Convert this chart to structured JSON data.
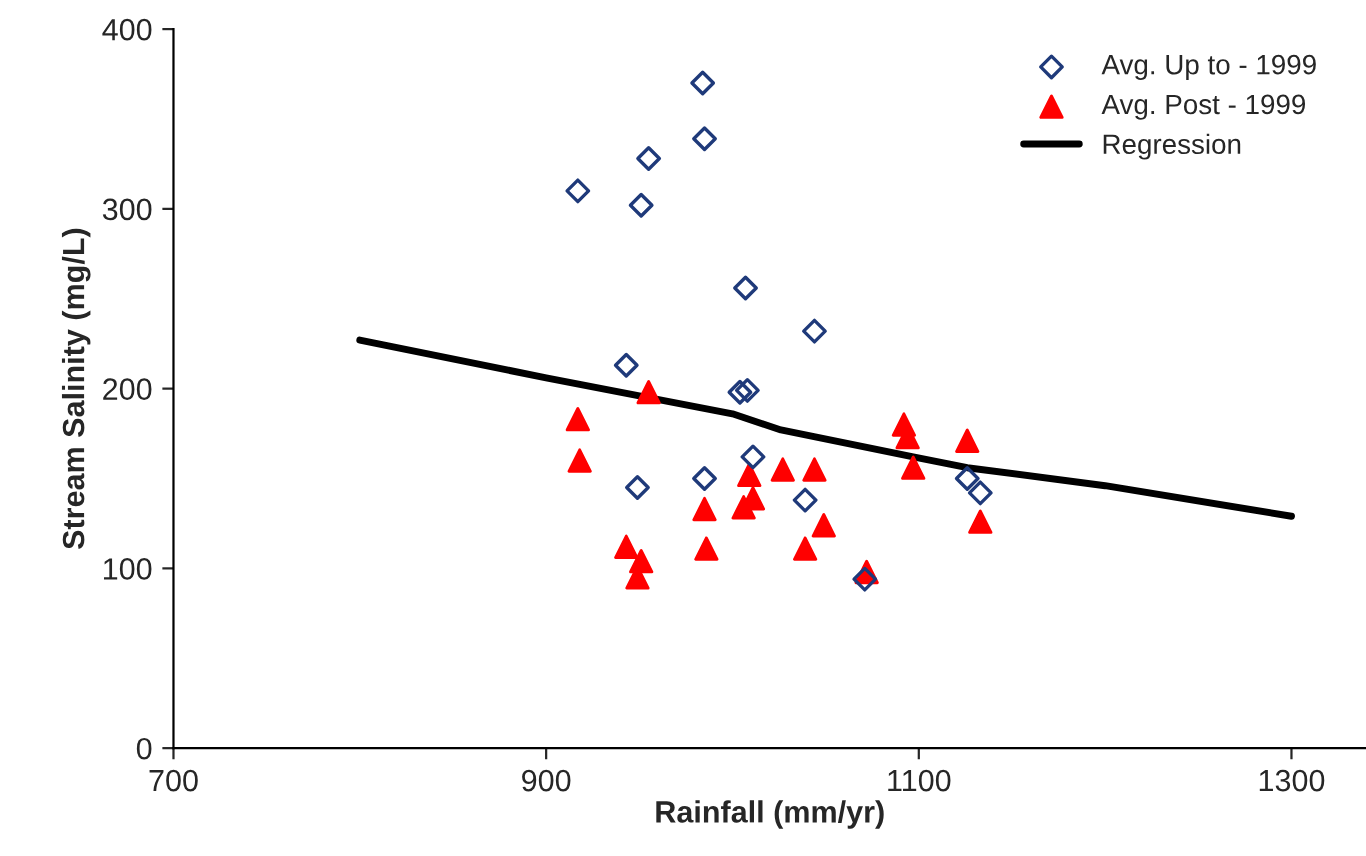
{
  "chart_data": {
    "type": "scatter",
    "xlabel": "Rainfall (mm/yr)",
    "ylabel": "Stream Salinity (mg/L)",
    "xlim": [
      700,
      1340
    ],
    "xticks": [
      700,
      900,
      1100,
      1300
    ],
    "ylim": [
      0,
      400
    ],
    "yticks": [
      0,
      100,
      200,
      300,
      400
    ],
    "grid": false,
    "legend": "top right",
    "series": [
      {
        "name": "Avg. Up to - 1999",
        "marker": "diamond",
        "color": "#1f3a7a",
        "x": [
          917,
          984,
          985,
          955,
          951,
          1007,
          1044,
          943,
          1004,
          1008,
          949,
          985,
          1011,
          1039,
          1071,
          1126,
          1133
        ],
        "values": [
          310,
          370,
          339,
          328,
          302,
          256,
          232,
          213,
          198,
          199,
          145,
          150,
          162,
          138,
          94,
          150,
          142
        ]
      },
      {
        "name": "Avg. Post - 1999",
        "marker": "triangle",
        "color": "#ff0000",
        "x": [
          917,
          918,
          955,
          943,
          951,
          949,
          985,
          986,
          1009,
          1011,
          1006,
          1027,
          1044,
          1049,
          1039,
          1072,
          1092,
          1094,
          1097,
          1126,
          1133
        ],
        "values": [
          183,
          160,
          198,
          112,
          104,
          95,
          133,
          111,
          152,
          139,
          134,
          155,
          155,
          124,
          111,
          98,
          180,
          173,
          156,
          171,
          126
        ]
      },
      {
        "name": "Regression",
        "type": "line",
        "marker": "none",
        "line_style": "solid",
        "color": "#000000",
        "x": [
          800,
          900,
          1000,
          1026,
          1097,
          1126,
          1200,
          1300
        ],
        "values": [
          227,
          206,
          186,
          177,
          162,
          156,
          146,
          129
        ]
      }
    ]
  }
}
